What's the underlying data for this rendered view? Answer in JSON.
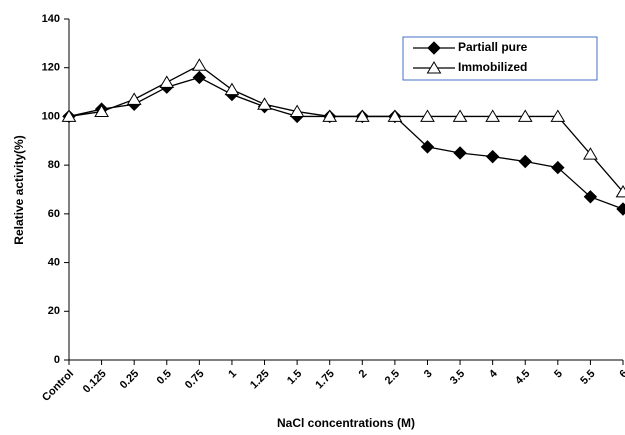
{
  "chart_data": {
    "type": "line",
    "x_label": "NaCl concentrations (M)",
    "y_label": "Relative activity(%)",
    "categories": [
      "Control",
      "0.125",
      "0.25",
      "0.5",
      "0.75",
      "1",
      "1.25",
      "1.5",
      "1.75",
      "2",
      "2.5",
      "3",
      "3.5",
      "4",
      "4.5",
      "5",
      "5.5",
      "6"
    ],
    "series": [
      {
        "name": "Partiall pure",
        "color": "#000000",
        "marker": "diamond",
        "values": [
          100,
          103,
          105,
          112,
          116,
          109,
          104,
          100,
          100,
          100,
          100,
          87.5,
          85,
          83.5,
          81.5,
          79,
          67,
          62
        ]
      },
      {
        "name": "Immobilized",
        "color": "#000000",
        "marker": "triangle",
        "values": [
          100,
          102,
          107,
          114,
          121,
          111,
          105,
          102,
          100,
          100,
          100,
          100,
          100,
          100,
          100,
          100,
          84.5,
          69
        ]
      }
    ],
    "ylim": [
      0,
      140
    ],
    "yticks": [
      0,
      20,
      40,
      60,
      80,
      100,
      120,
      140
    ],
    "grid": false,
    "legend": "top-right"
  }
}
